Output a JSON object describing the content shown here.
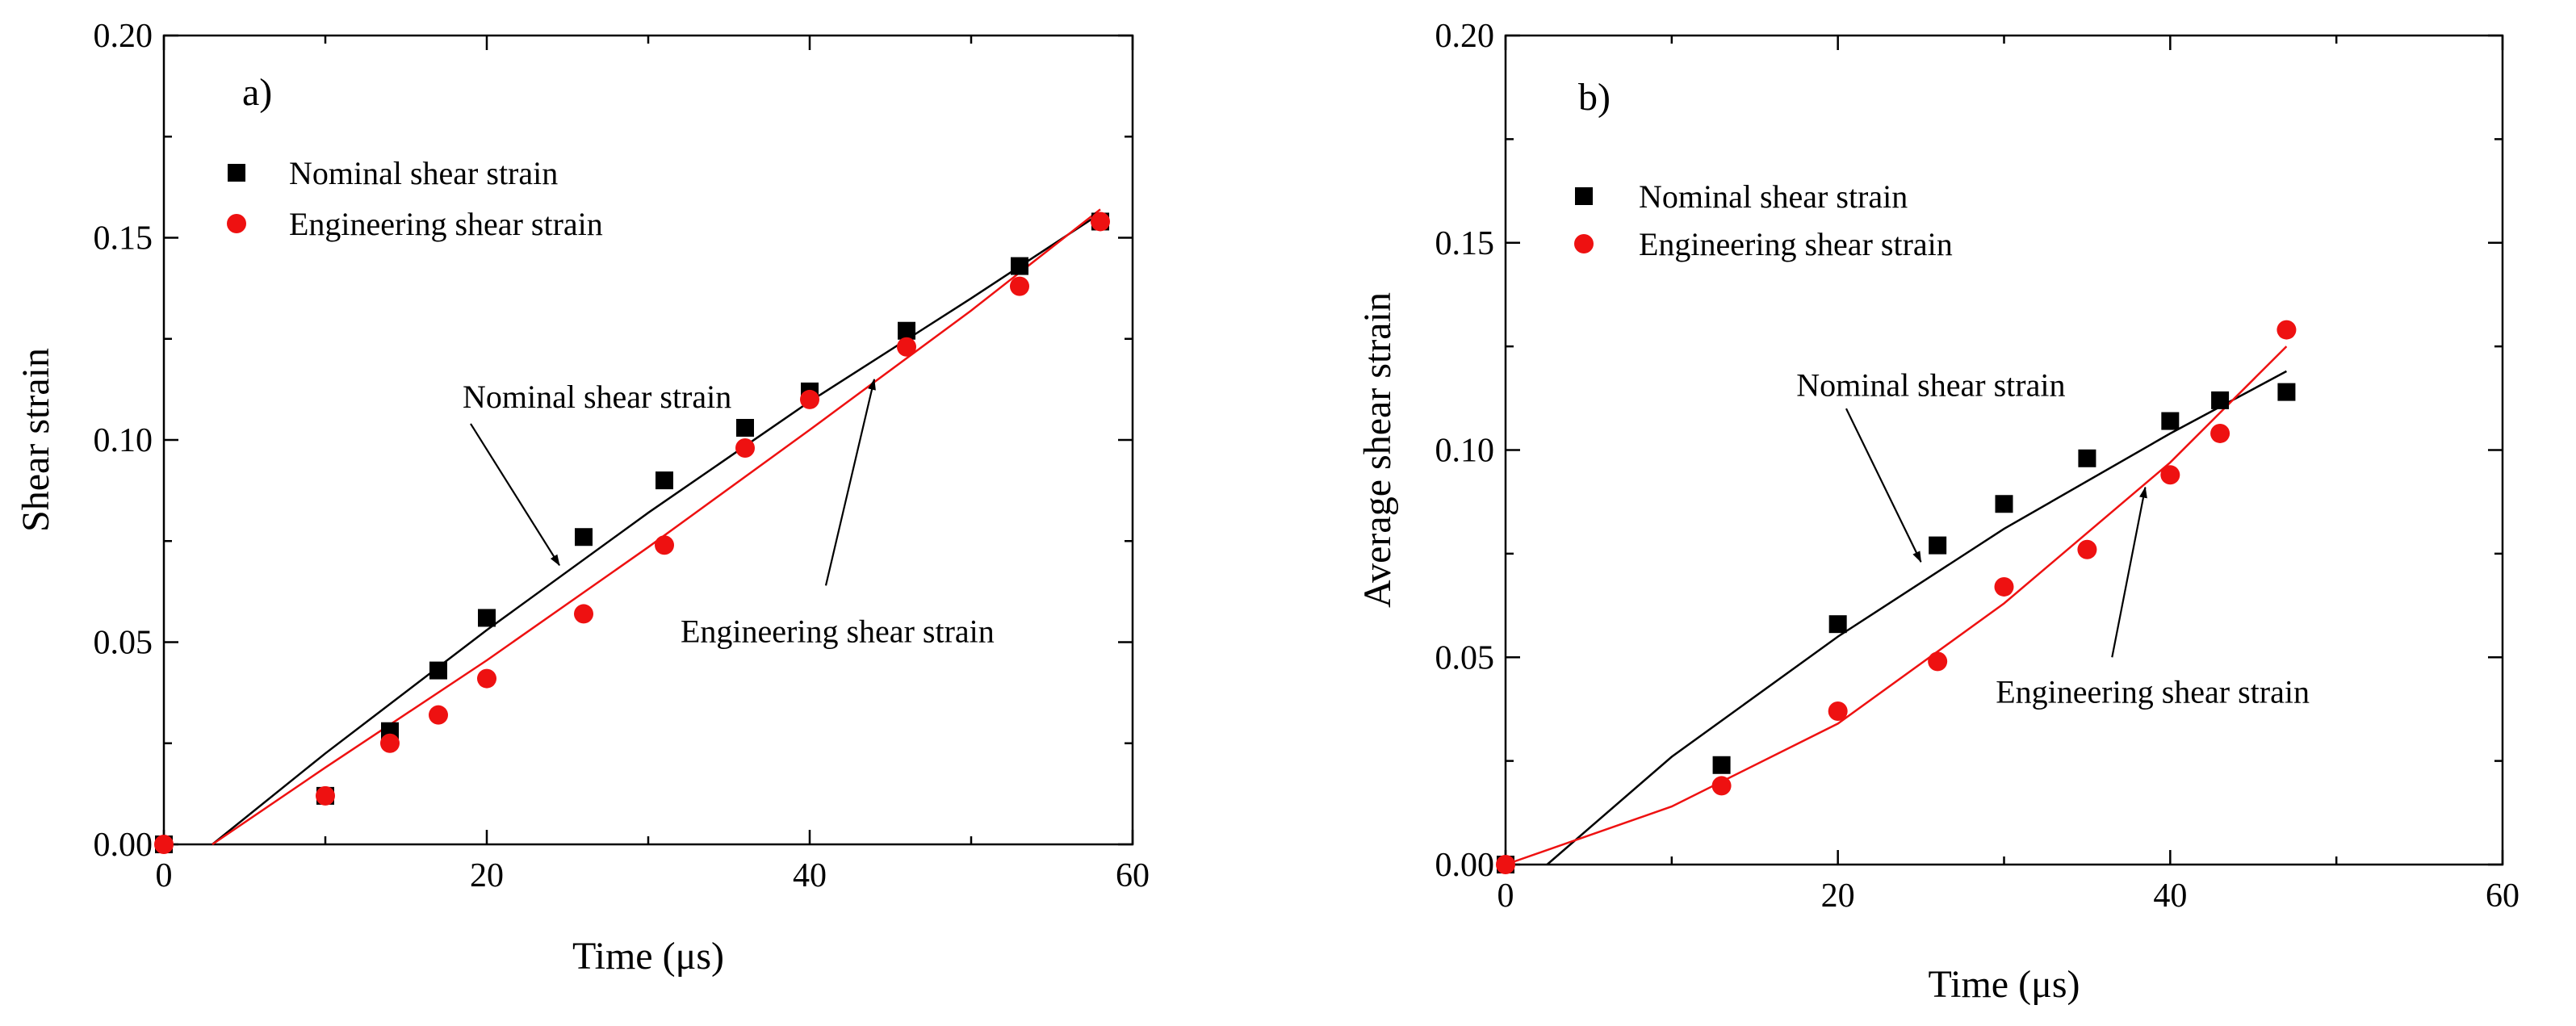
{
  "figure": {
    "panel_count": 2
  },
  "colors": {
    "nominal": "#000000",
    "engineering": "#ee1111",
    "axis": "#000000"
  },
  "chart_data": [
    {
      "panel_label": "a)",
      "type": "scatter",
      "xlabel": "Time (μs)",
      "ylabel": "Shear strain",
      "xlim": [
        0,
        60
      ],
      "ylim": [
        0,
        0.2
      ],
      "x_ticks": [
        0,
        20,
        40,
        60
      ],
      "x_tick_labels": [
        "0",
        "20",
        "40",
        "60"
      ],
      "y_ticks": [
        0,
        0.05,
        0.1,
        0.15,
        0.2
      ],
      "y_tick_labels": [
        "0.00",
        "0.05",
        "0.10",
        "0.15",
        "0.20"
      ],
      "legend": {
        "position": "top-left",
        "entries": [
          "Nominal shear strain",
          "Engineering shear strain"
        ]
      },
      "series": [
        {
          "name": "Nominal shear strain",
          "marker": "square",
          "x": [
            0,
            10,
            14,
            17,
            20,
            26,
            31,
            36,
            40,
            46,
            53,
            58
          ],
          "y": [
            0.0,
            0.012,
            0.028,
            0.043,
            0.056,
            0.076,
            0.09,
            0.103,
            0.112,
            0.127,
            0.143,
            0.154
          ],
          "fit": {
            "x": [
              3,
              10,
              20,
              30,
              40,
              50,
              58
            ],
            "y": [
              0.0,
              0.0225,
              0.053,
              0.082,
              0.1095,
              0.135,
              0.156
            ]
          }
        },
        {
          "name": "Engineering shear strain",
          "marker": "circle",
          "x": [
            0,
            10,
            14,
            17,
            20,
            26,
            31,
            36,
            40,
            46,
            53,
            58
          ],
          "y": [
            0.0,
            0.012,
            0.025,
            0.032,
            0.041,
            0.057,
            0.074,
            0.098,
            0.11,
            0.123,
            0.138,
            0.154
          ],
          "fit": {
            "x": [
              3,
              10,
              20,
              30,
              40,
              50,
              58
            ],
            "y": [
              0.0,
              0.019,
              0.0455,
              0.0735,
              0.1025,
              0.132,
              0.157
            ]
          }
        }
      ],
      "annotations": [
        {
          "text": "Nominal shear strain",
          "text_at": [
            18.5,
            0.108
          ],
          "arrow_from": [
            19,
            0.104
          ],
          "arrow_to": [
            24.5,
            0.069
          ]
        },
        {
          "text": "Engineering shear strain",
          "text_at": [
            32,
            0.05
          ],
          "arrow_from": [
            41,
            0.064
          ],
          "arrow_to": [
            44,
            0.115
          ]
        }
      ]
    },
    {
      "panel_label": "b)",
      "type": "scatter",
      "xlabel": "Time (μs)",
      "ylabel": "Average shear strain",
      "xlim": [
        0,
        60
      ],
      "ylim": [
        0,
        0.2
      ],
      "x_ticks": [
        0,
        20,
        40,
        60
      ],
      "x_tick_labels": [
        "0",
        "20",
        "40",
        "60"
      ],
      "y_ticks": [
        0,
        0.05,
        0.1,
        0.15,
        0.2
      ],
      "y_tick_labels": [
        "0.00",
        "0.05",
        "0.10",
        "0.15",
        "0.20"
      ],
      "legend": {
        "position": "top-left",
        "entries": [
          "Nominal shear strain",
          "Engineering shear strain"
        ]
      },
      "series": [
        {
          "name": "Nominal shear strain",
          "marker": "square",
          "x": [
            0,
            13,
            20,
            26,
            30,
            35,
            40,
            43,
            47
          ],
          "y": [
            0.0,
            0.024,
            0.058,
            0.077,
            0.087,
            0.098,
            0.107,
            0.112,
            0.114
          ],
          "fit": {
            "x": [
              2.5,
              10,
              20,
              30,
              40,
              47
            ],
            "y": [
              0.0,
              0.026,
              0.055,
              0.081,
              0.104,
              0.119
            ]
          }
        },
        {
          "name": "Engineering shear strain",
          "marker": "circle",
          "x": [
            0,
            13,
            20,
            26,
            30,
            35,
            40,
            43,
            47
          ],
          "y": [
            0.0,
            0.019,
            0.037,
            0.049,
            0.067,
            0.076,
            0.094,
            0.104,
            0.129
          ],
          "fit": {
            "x": [
              0,
              10,
              20,
              30,
              40,
              47
            ],
            "y": [
              0.0,
              0.014,
              0.034,
              0.063,
              0.097,
              0.125
            ]
          }
        }
      ],
      "annotations": [
        {
          "text": "Nominal shear strain",
          "text_at": [
            17.5,
            0.113
          ],
          "arrow_from": [
            20.5,
            0.11
          ],
          "arrow_to": [
            25,
            0.073
          ]
        },
        {
          "text": "Engineering shear strain",
          "text_at": [
            29.5,
            0.039
          ],
          "arrow_from": [
            36.5,
            0.05
          ],
          "arrow_to": [
            38.5,
            0.091
          ]
        }
      ]
    }
  ]
}
